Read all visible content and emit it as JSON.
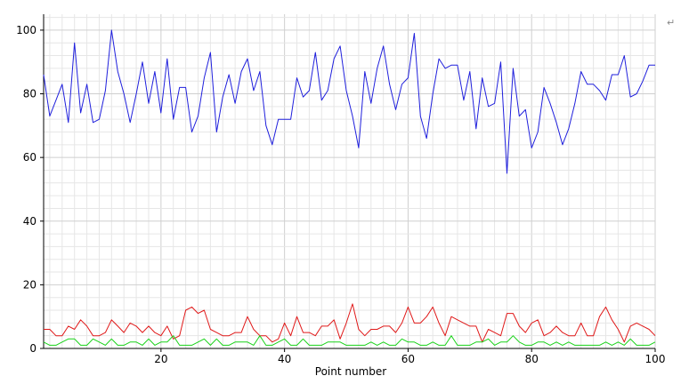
{
  "return_mark": "↵",
  "chart_data": {
    "type": "line",
    "title": "",
    "xlabel": "Point number",
    "ylabel": "",
    "xlim": [
      1,
      100
    ],
    "ylim": [
      0,
      105
    ],
    "xticks": [
      20,
      40,
      60,
      80,
      100
    ],
    "yticks": [
      0,
      20,
      40,
      60,
      80,
      100
    ],
    "grid": true,
    "legend": "none",
    "x": [
      1,
      2,
      3,
      4,
      5,
      6,
      7,
      8,
      9,
      10,
      11,
      12,
      13,
      14,
      15,
      16,
      17,
      18,
      19,
      20,
      21,
      22,
      23,
      24,
      25,
      26,
      27,
      28,
      29,
      30,
      31,
      32,
      33,
      34,
      35,
      36,
      37,
      38,
      39,
      40,
      41,
      42,
      43,
      44,
      45,
      46,
      47,
      48,
      49,
      50,
      51,
      52,
      53,
      54,
      55,
      56,
      57,
      58,
      59,
      60,
      61,
      62,
      63,
      64,
      65,
      66,
      67,
      68,
      69,
      70,
      71,
      72,
      73,
      74,
      75,
      76,
      77,
      78,
      79,
      80,
      81,
      82,
      83,
      84,
      85,
      86,
      87,
      88,
      89,
      90,
      91,
      92,
      93,
      94,
      95,
      96,
      97,
      98,
      99,
      100
    ],
    "series": [
      {
        "color": "#1f1fdc",
        "values": [
          86,
          73,
          78,
          83,
          71,
          96,
          74,
          83,
          71,
          72,
          81,
          100,
          87,
          80,
          71,
          80,
          90,
          77,
          87,
          74,
          91,
          72,
          82,
          82,
          68,
          73,
          85,
          93,
          68,
          79,
          86,
          77,
          87,
          91,
          81,
          87,
          70,
          64,
          72,
          72,
          72,
          85,
          79,
          81,
          93,
          78,
          81,
          91,
          95,
          81,
          73,
          63,
          87,
          77,
          88,
          95,
          83,
          75,
          83,
          85,
          99,
          73,
          66,
          80,
          91,
          88,
          89,
          89,
          78,
          87,
          69,
          85,
          76,
          77,
          90,
          55,
          88,
          73,
          75,
          63,
          68,
          82,
          77,
          71,
          64,
          69,
          77,
          87,
          83,
          83,
          81,
          78,
          86,
          86,
          92,
          79,
          80,
          84,
          89,
          89
        ]
      },
      {
        "color": "#e01919",
        "values": [
          6,
          6,
          4,
          4,
          7,
          6,
          9,
          7,
          4,
          4,
          5,
          9,
          7,
          5,
          8,
          7,
          5,
          7,
          5,
          4,
          7,
          3,
          4,
          12,
          13,
          11,
          12,
          6,
          5,
          4,
          4,
          5,
          5,
          10,
          6,
          4,
          4,
          2,
          3,
          8,
          4,
          10,
          5,
          5,
          4,
          7,
          7,
          9,
          3,
          8,
          14,
          6,
          4,
          6,
          6,
          7,
          7,
          5,
          8,
          13,
          8,
          8,
          10,
          13,
          8,
          4,
          10,
          9,
          8,
          7,
          7,
          2,
          6,
          5,
          4,
          11,
          11,
          7,
          5,
          8,
          9,
          4,
          5,
          7,
          5,
          4,
          4,
          8,
          4,
          4,
          10,
          13,
          9,
          6,
          2,
          7,
          8,
          7,
          6,
          4
        ]
      },
      {
        "color": "#19d219",
        "values": [
          2,
          1,
          1,
          2,
          3,
          3,
          1,
          1,
          3,
          2,
          1,
          3,
          1,
          1,
          2,
          2,
          1,
          3,
          1,
          2,
          2,
          4,
          1,
          1,
          1,
          2,
          3,
          1,
          3,
          1,
          1,
          2,
          2,
          2,
          1,
          4,
          1,
          1,
          2,
          3,
          1,
          1,
          3,
          1,
          1,
          1,
          2,
          2,
          2,
          1,
          1,
          1,
          1,
          2,
          1,
          2,
          1,
          1,
          3,
          2,
          2,
          1,
          1,
          2,
          1,
          1,
          4,
          1,
          1,
          1,
          2,
          2,
          3,
          1,
          2,
          2,
          4,
          2,
          1,
          1,
          2,
          2,
          1,
          2,
          1,
          2,
          1,
          1,
          1,
          1,
          1,
          2,
          1,
          2,
          1,
          3,
          1,
          1,
          1,
          2
        ]
      }
    ]
  }
}
